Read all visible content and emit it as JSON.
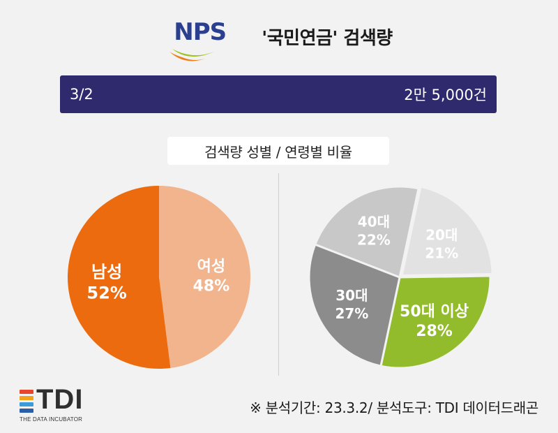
{
  "header": {
    "logo_text": "NPS",
    "title": "'국민연금' 검색량"
  },
  "banner": {
    "date": "3/2",
    "count": "2만 5,000건"
  },
  "subtitle": "검색량 성별 / 연령별 비율",
  "colors": {
    "banner": "#2e2a6d",
    "male": "#ec6b0f",
    "female": "#f2b48c",
    "age_40s": "#c8c8c8",
    "age_20s": "#e2e2e2",
    "age_30s": "#8c8c8c",
    "age_50plus": "#92bc2c"
  },
  "chart_data": [
    {
      "type": "pie",
      "title": "",
      "slices": [
        {
          "name": "남성",
          "label_value": "52%",
          "value": 52,
          "color": "#ec6b0f"
        },
        {
          "name": "여성",
          "label_value": "48%",
          "value": 48,
          "color": "#f2b48c"
        }
      ]
    },
    {
      "type": "pie",
      "title": "",
      "slices": [
        {
          "name": "20대",
          "label_value": "21%",
          "value": 21,
          "color": "#e2e2e2"
        },
        {
          "name": "50대 이상",
          "label_value": "28%",
          "value": 28,
          "color": "#92bc2c"
        },
        {
          "name": "30대",
          "label_value": "27%",
          "value": 27,
          "color": "#8c8c8c"
        },
        {
          "name": "40대",
          "label_value": "22%",
          "value": 22,
          "color": "#c8c8c8"
        }
      ]
    }
  ],
  "footer": {
    "logo_text": "TDI",
    "logo_sub": "THE DATA INCUBATOR",
    "note": "※ 분석기간: 23.3.2/ 분석도구: TDI 데이터드래곤"
  }
}
